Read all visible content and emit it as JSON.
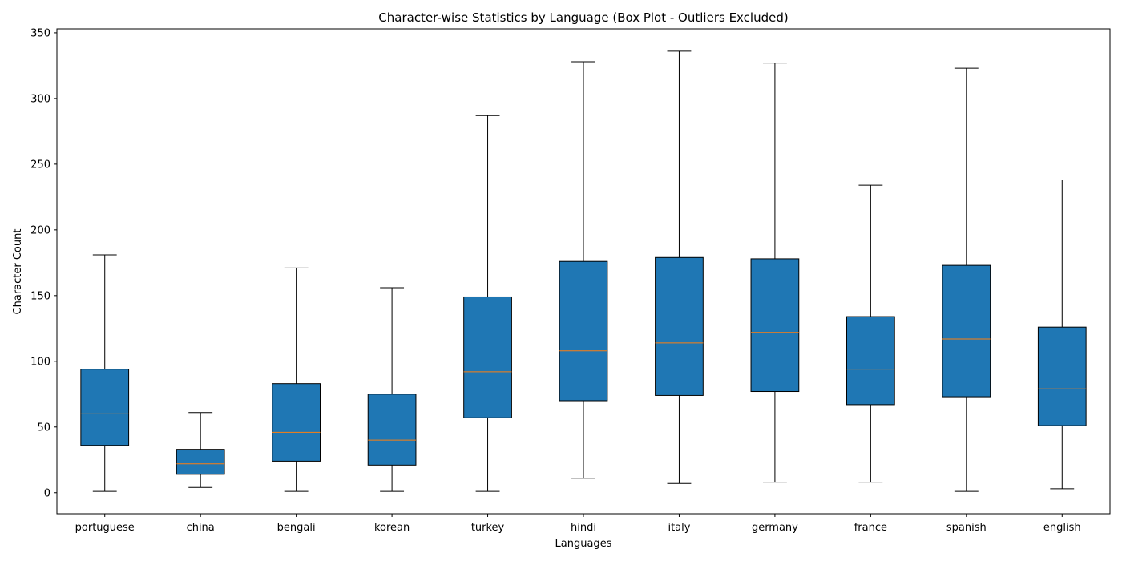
{
  "chart_data": {
    "type": "box",
    "title": "Character-wise Statistics by Language (Box Plot - Outliers Excluded)",
    "xlabel": "Languages",
    "ylabel": "Character Count",
    "ylim": [
      -16,
      353
    ],
    "yticks": [
      0,
      50,
      100,
      150,
      200,
      250,
      300,
      350
    ],
    "grid": false,
    "box_color": "#1f77b4",
    "median_color": "#ff7f0e",
    "categories": [
      "portuguese",
      "china",
      "bengali",
      "korean",
      "turkey",
      "hindi",
      "italy",
      "germany",
      "france",
      "spanish",
      "english"
    ],
    "boxes": [
      {
        "whisker_low": 1,
        "q1": 36,
        "median": 60,
        "q3": 94,
        "whisker_high": 181
      },
      {
        "whisker_low": 4,
        "q1": 14,
        "median": 22,
        "q3": 33,
        "whisker_high": 61
      },
      {
        "whisker_low": 1,
        "q1": 24,
        "median": 46,
        "q3": 83,
        "whisker_high": 171
      },
      {
        "whisker_low": 1,
        "q1": 21,
        "median": 40,
        "q3": 75,
        "whisker_high": 156
      },
      {
        "whisker_low": 1,
        "q1": 57,
        "median": 92,
        "q3": 149,
        "whisker_high": 287
      },
      {
        "whisker_low": 11,
        "q1": 70,
        "median": 108,
        "q3": 176,
        "whisker_high": 328
      },
      {
        "whisker_low": 7,
        "q1": 74,
        "median": 114,
        "q3": 179,
        "whisker_high": 336
      },
      {
        "whisker_low": 8,
        "q1": 77,
        "median": 122,
        "q3": 178,
        "whisker_high": 327
      },
      {
        "whisker_low": 8,
        "q1": 67,
        "median": 94,
        "q3": 134,
        "whisker_high": 234
      },
      {
        "whisker_low": 1,
        "q1": 73,
        "median": 117,
        "q3": 173,
        "whisker_high": 323
      },
      {
        "whisker_low": 3,
        "q1": 51,
        "median": 79,
        "q3": 126,
        "whisker_high": 238
      }
    ]
  }
}
